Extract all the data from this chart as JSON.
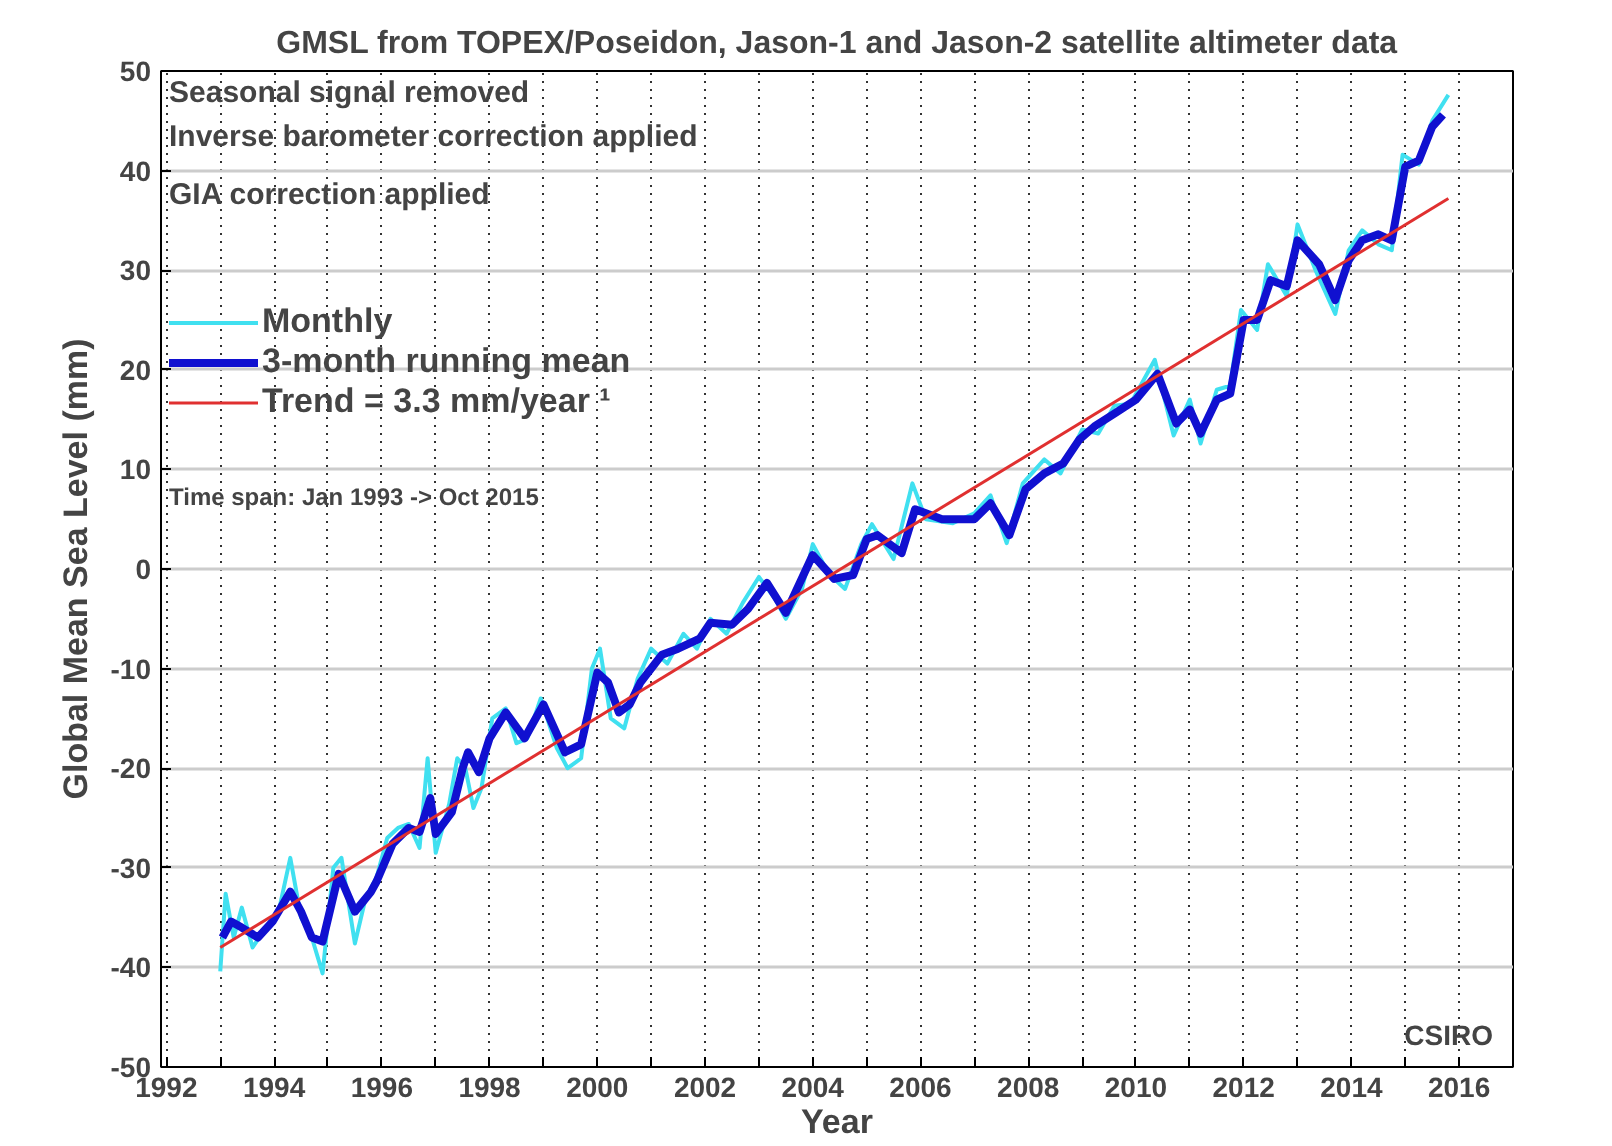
{
  "chart_data": {
    "type": "line",
    "title": "GMSL from TOPEX/Poseidon, Jason-1 and Jason-2 satellite altimeter data",
    "xlabel": "Year",
    "ylabel": "Global Mean Sea Level (mm)",
    "annotations": [
      "Seasonal signal removed",
      "Inverse barometer correction applied",
      "GIA correction applied",
      "Time span: Jan 1993 -> Oct 2015",
      "CSIRO"
    ],
    "xlim": [
      1991.9,
      2017
    ],
    "ylim": [
      -50,
      50
    ],
    "xticks": [
      1992,
      {
        "value": 1993,
        "label": null
      },
      1994,
      {
        "value": 1995,
        "label": null
      },
      1996,
      {
        "value": 1997,
        "label": null
      },
      1998,
      {
        "value": 1999,
        "label": null
      },
      2000,
      {
        "value": 2001,
        "label": null
      },
      2002,
      {
        "value": 2003,
        "label": null
      },
      2004,
      {
        "value": 2005,
        "label": null
      },
      2006,
      {
        "value": 2007,
        "label": null
      },
      2008,
      {
        "value": 2009,
        "label": null
      },
      2010,
      {
        "value": 2011,
        "label": null
      },
      2012,
      {
        "value": 2013,
        "label": null
      },
      2014,
      {
        "value": 2015,
        "label": null
      },
      2016
    ],
    "yticks": [
      -50,
      -40,
      -30,
      -20,
      -10,
      0,
      10,
      20,
      30,
      40,
      50
    ],
    "grid": true,
    "legend": "top left",
    "line_style": "solid",
    "marker": "none",
    "series": [
      {
        "name": "Monthly",
        "color": "#40e0f0",
        "x": [
          1993.0,
          1993.1,
          1993.25,
          1993.4,
          1993.6,
          1993.85,
          1994.1,
          1994.3,
          1994.5,
          1994.7,
          1994.9,
          1995.1,
          1995.25,
          1995.5,
          1995.7,
          1995.9,
          1996.1,
          1996.3,
          1996.5,
          1996.7,
          1996.85,
          1997.0,
          1997.25,
          1997.4,
          1997.55,
          1997.7,
          1997.85,
          1998.05,
          1998.3,
          1998.5,
          1998.7,
          1998.95,
          1999.25,
          1999.45,
          1999.7,
          1999.9,
          2000.05,
          2000.25,
          2000.5,
          2000.75,
          2001.0,
          2001.3,
          2001.6,
          2001.85,
          2002.1,
          2002.4,
          2002.7,
          2003.0,
          2003.3,
          2003.5,
          2003.8,
          2004.0,
          2004.3,
          2004.6,
          2004.9,
          2005.1,
          2005.5,
          2005.85,
          2006.1,
          2006.6,
          2007.0,
          2007.3,
          2007.6,
          2007.9,
          2008.3,
          2008.6,
          2009.0,
          2009.3,
          2009.6,
          2009.9,
          2010.35,
          2010.7,
          2011.0,
          2011.2,
          2011.5,
          2011.75,
          2011.95,
          2012.25,
          2012.45,
          2012.8,
          2013.0,
          2013.35,
          2013.7,
          2013.95,
          2014.2,
          2014.5,
          2014.75,
          2014.95,
          2015.25,
          2015.5,
          2015.8
        ],
        "values": [
          -40.4,
          -32.6,
          -37,
          -34,
          -38,
          -36,
          -34,
          -29,
          -35,
          -37,
          -40.6,
          -30,
          -29,
          -37.6,
          -33,
          -31,
          -27,
          -26,
          -25.6,
          -28,
          -19,
          -28.5,
          -23.6,
          -19,
          -20,
          -24,
          -22,
          -15,
          -14,
          -17.5,
          -17,
          -13,
          -18,
          -20,
          -19,
          -10,
          -8,
          -15,
          -16,
          -11,
          -8,
          -9.5,
          -6.5,
          -8,
          -5,
          -6.5,
          -3.4,
          -0.8,
          -3,
          -5,
          -2,
          2.5,
          -0.5,
          -2,
          2.5,
          4.5,
          1,
          8.6,
          5,
          4.6,
          5.6,
          7.4,
          2.6,
          8.6,
          11,
          9.6,
          14,
          13.6,
          16.4,
          16.6,
          21,
          13.4,
          17,
          12.6,
          18,
          18.4,
          26,
          24,
          30.6,
          27.4,
          34.6,
          29.8,
          25.6,
          32,
          34,
          32.6,
          32,
          41.6,
          40.6,
          45,
          47.6
        ]
      },
      {
        "name": "3-month running mean",
        "color": "#1010d0",
        "x": [
          1993.04,
          1993.2,
          1993.4,
          1993.7,
          1993.97,
          1994.3,
          1994.5,
          1994.7,
          1994.9,
          1995.2,
          1995.5,
          1995.8,
          1995.9,
          1996.2,
          1996.5,
          1996.7,
          1996.9,
          1997.0,
          1997.3,
          1997.5,
          1997.6,
          1997.8,
          1998.0,
          1998.3,
          1998.65,
          1999.0,
          1999.4,
          1999.7,
          2000.0,
          2000.2,
          2000.4,
          2000.6,
          2000.8,
          2001.2,
          2001.5,
          2001.9,
          2002.1,
          2002.5,
          2002.8,
          2003.15,
          2003.5,
          2004.0,
          2004.4,
          2004.75,
          2005.0,
          2005.2,
          2005.65,
          2005.9,
          2006.4,
          2007.0,
          2007.3,
          2007.65,
          2007.95,
          2008.3,
          2008.65,
          2008.95,
          2009.25,
          2009.6,
          2010.0,
          2010.4,
          2010.75,
          2011.0,
          2011.2,
          2011.5,
          2011.75,
          2012.0,
          2012.25,
          2012.5,
          2012.8,
          2013.0,
          2013.4,
          2013.7,
          2013.95,
          2014.2,
          2014.5,
          2014.75,
          2015.0,
          2015.25,
          2015.5,
          2015.7
        ],
        "values": [
          -37,
          -35.4,
          -36,
          -37,
          -35.4,
          -32.4,
          -34.4,
          -37,
          -37.4,
          -30.6,
          -34.4,
          -32.4,
          -31.4,
          -27.6,
          -26,
          -26.4,
          -23,
          -26.6,
          -24.4,
          -20,
          -18.4,
          -20.4,
          -17,
          -14.4,
          -17,
          -13.6,
          -18.4,
          -17.6,
          -10.4,
          -11.4,
          -14.4,
          -13.6,
          -11.4,
          -8.6,
          -8,
          -7,
          -5.4,
          -5.6,
          -4,
          -1.4,
          -4.4,
          1.4,
          -1,
          -0.6,
          3,
          3.4,
          1.6,
          6,
          5,
          5,
          6.6,
          3.4,
          8,
          9.6,
          10.6,
          13,
          14.4,
          15.6,
          17,
          19.6,
          14.6,
          16,
          13.6,
          17,
          17.6,
          25,
          25,
          29,
          28.4,
          33,
          30.6,
          27,
          31,
          33,
          33.6,
          33,
          40.4,
          41,
          44.4,
          45.6
        ]
      },
      {
        "name": "Trend = 3.3 mm/year ¹",
        "color": "#e03030",
        "x": [
          1993.0,
          2015.8
        ],
        "values": [
          -38,
          37.2
        ]
      }
    ]
  }
}
